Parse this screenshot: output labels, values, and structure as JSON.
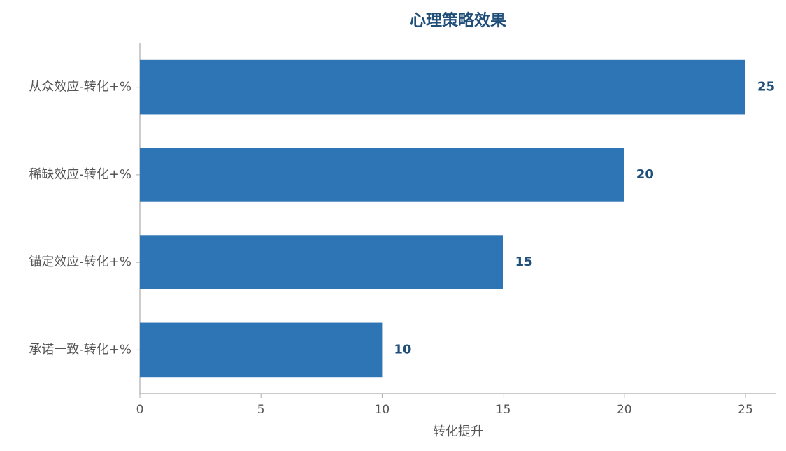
{
  "chart_data": {
    "type": "barh",
    "title": "心理策略效果",
    "x_label": "转化提升",
    "categories": [
      "从众效应-转化+%",
      "稀缺效应-转化+%",
      "锚定效应-转化+%",
      "承诺一致-转化+%"
    ],
    "values": [
      25,
      20,
      15,
      10
    ],
    "color": "#2e75b6",
    "xlim": [
      0,
      26.27
    ],
    "xticks": [
      0,
      5,
      10,
      15,
      20,
      25
    ]
  }
}
